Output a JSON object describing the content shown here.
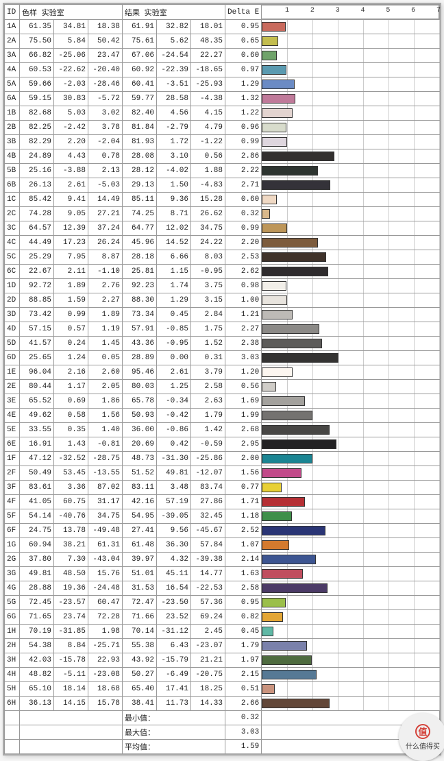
{
  "headers": {
    "id": "ID",
    "group1": "色样 实验室",
    "group2": "结果 实验室",
    "delta": "Delta E"
  },
  "axis": {
    "min": 0,
    "max": 7,
    "ticks": [
      1,
      2,
      3,
      4,
      5,
      6,
      7
    ]
  },
  "grid_color": "#cccccc",
  "rows": [
    {
      "id": "1A",
      "a1": 61.35,
      "a2": 34.81,
      "a3": 18.38,
      "b1": 61.91,
      "b2": 32.82,
      "b3": 18.01,
      "dE": 0.95,
      "color": "#c96a5d"
    },
    {
      "id": "2A",
      "a1": 75.5,
      "a2": 5.84,
      "a3": 50.42,
      "b1": 75.61,
      "b2": 5.62,
      "b3": 48.35,
      "dE": 0.65,
      "color": "#c3bd4e"
    },
    {
      "id": "3A",
      "a1": 66.82,
      "a2": -25.06,
      "a3": 23.47,
      "b1": 67.06,
      "b2": -24.54,
      "b3": 22.27,
      "dE": 0.6,
      "color": "#6fa36a"
    },
    {
      "id": "4A",
      "a1": 60.53,
      "a2": -22.62,
      "a3": -20.4,
      "b1": 60.92,
      "b2": -22.39,
      "b3": -18.65,
      "dE": 0.97,
      "color": "#5a9ab0"
    },
    {
      "id": "5A",
      "a1": 59.66,
      "a2": -2.03,
      "a3": -28.46,
      "b1": 60.41,
      "b2": -3.51,
      "b3": -25.93,
      "dE": 1.29,
      "color": "#6b8bc4"
    },
    {
      "id": "6A",
      "a1": 59.15,
      "a2": 30.83,
      "a3": -5.72,
      "b1": 59.77,
      "b2": 28.58,
      "b3": -4.38,
      "dE": 1.32,
      "color": "#c07a9a"
    },
    {
      "id": "1B",
      "a1": 82.68,
      "a2": 5.03,
      "a3": 3.02,
      "b1": 82.4,
      "b2": 4.56,
      "b3": 4.15,
      "dE": 1.22,
      "color": "#e3d4d0"
    },
    {
      "id": "2B",
      "a1": 82.25,
      "a2": -2.42,
      "a3": 3.78,
      "b1": 81.84,
      "b2": -2.79,
      "b3": 4.79,
      "dE": 0.96,
      "color": "#d8dccc"
    },
    {
      "id": "3B",
      "a1": 82.29,
      "a2": 2.2,
      "a3": -2.04,
      "b1": 81.93,
      "b2": 1.72,
      "b3": -1.22,
      "dE": 0.99,
      "color": "#ded6de"
    },
    {
      "id": "4B",
      "a1": 24.89,
      "a2": 4.43,
      "a3": 0.78,
      "b1": 28.08,
      "b2": 3.1,
      "b3": 0.56,
      "dE": 2.86,
      "color": "#33302f"
    },
    {
      "id": "5B",
      "a1": 25.16,
      "a2": -3.88,
      "a3": 2.13,
      "b1": 28.12,
      "b2": -4.02,
      "b3": 1.88,
      "dE": 2.22,
      "color": "#2d3430"
    },
    {
      "id": "6B",
      "a1": 26.13,
      "a2": 2.61,
      "a3": -5.03,
      "b1": 29.13,
      "b2": 1.5,
      "b3": -4.83,
      "dE": 2.71,
      "color": "#343239"
    },
    {
      "id": "1C",
      "a1": 85.42,
      "a2": 9.41,
      "a3": 14.49,
      "b1": 85.11,
      "b2": 9.36,
      "b3": 15.28,
      "dE": 0.6,
      "color": "#f0d9c4"
    },
    {
      "id": "2C",
      "a1": 74.28,
      "a2": 9.05,
      "a3": 27.21,
      "b1": 74.25,
      "b2": 8.71,
      "b3": 26.62,
      "dE": 0.32,
      "color": "#d8b88b"
    },
    {
      "id": "3C",
      "a1": 64.57,
      "a2": 12.39,
      "a3": 37.24,
      "b1": 64.77,
      "b2": 12.02,
      "b3": 34.75,
      "dE": 0.99,
      "color": "#bd9659"
    },
    {
      "id": "4C",
      "a1": 44.49,
      "a2": 17.23,
      "a3": 26.24,
      "b1": 45.96,
      "b2": 14.52,
      "b3": 24.22,
      "dE": 2.2,
      "color": "#7d5c3d"
    },
    {
      "id": "5C",
      "a1": 25.29,
      "a2": 7.95,
      "a3": 8.87,
      "b1": 28.18,
      "b2": 6.66,
      "b3": 8.03,
      "dE": 2.53,
      "color": "#3f322a"
    },
    {
      "id": "6C",
      "a1": 22.67,
      "a2": 2.11,
      "a3": -1.1,
      "b1": 25.81,
      "b2": 1.15,
      "b3": -0.95,
      "dE": 2.62,
      "color": "#2f2c2e"
    },
    {
      "id": "1D",
      "a1": 92.72,
      "a2": 1.89,
      "a3": 2.76,
      "b1": 92.23,
      "b2": 1.74,
      "b3": 3.75,
      "dE": 0.98,
      "color": "#f2efe9"
    },
    {
      "id": "2D",
      "a1": 88.85,
      "a2": 1.59,
      "a3": 2.27,
      "b1": 88.3,
      "b2": 1.29,
      "b3": 3.15,
      "dE": 1.0,
      "color": "#e8e4de"
    },
    {
      "id": "3D",
      "a1": 73.42,
      "a2": 0.99,
      "a3": 1.89,
      "b1": 73.34,
      "b2": 0.45,
      "b3": 2.84,
      "dE": 1.21,
      "color": "#bdbab6"
    },
    {
      "id": "4D",
      "a1": 57.15,
      "a2": 0.57,
      "a3": 1.19,
      "b1": 57.91,
      "b2": -0.85,
      "b3": 1.75,
      "dE": 2.27,
      "color": "#8b8986"
    },
    {
      "id": "5D",
      "a1": 41.57,
      "a2": 0.24,
      "a3": 1.45,
      "b1": 43.36,
      "b2": -0.95,
      "b3": 1.52,
      "dE": 2.38,
      "color": "#5d5c5a"
    },
    {
      "id": "6D",
      "a1": 25.65,
      "a2": 1.24,
      "a3": 0.05,
      "b1": 28.89,
      "b2": -0.0,
      "b3": 0.31,
      "dE": 3.03,
      "color": "#343332"
    },
    {
      "id": "1E",
      "a1": 96.04,
      "a2": 2.16,
      "a3": 2.6,
      "b1": 95.46,
      "b2": 2.61,
      "b3": 3.79,
      "dE": 1.2,
      "color": "#fcf6f0"
    },
    {
      "id": "2E",
      "a1": 80.44,
      "a2": 1.17,
      "a3": 2.05,
      "b1": 80.03,
      "b2": 1.25,
      "b3": 2.58,
      "dE": 0.56,
      "color": "#d0cdc8"
    },
    {
      "id": "3E",
      "a1": 65.52,
      "a2": 0.69,
      "a3": 1.86,
      "b1": 65.78,
      "b2": -0.34,
      "b3": 2.63,
      "dE": 1.69,
      "color": "#a3a19d"
    },
    {
      "id": "4E",
      "a1": 49.62,
      "a2": 0.58,
      "a3": 1.56,
      "b1": 50.93,
      "b2": -0.42,
      "b3": 1.79,
      "dE": 1.99,
      "color": "#747270"
    },
    {
      "id": "5E",
      "a1": 33.55,
      "a2": 0.35,
      "a3": 1.4,
      "b1": 36.0,
      "b2": -0.86,
      "b3": 1.42,
      "dE": 2.68,
      "color": "#474644"
    },
    {
      "id": "6E",
      "a1": 16.91,
      "a2": 1.43,
      "a3": -0.81,
      "b1": 20.69,
      "b2": 0.42,
      "b3": -0.59,
      "dE": 2.95,
      "color": "#232224"
    },
    {
      "id": "1F",
      "a1": 47.12,
      "a2": -32.52,
      "a3": -28.75,
      "b1": 48.73,
      "b2": -31.3,
      "b3": -25.86,
      "dE": 2.0,
      "color": "#1b8593"
    },
    {
      "id": "2F",
      "a1": 50.49,
      "a2": 53.45,
      "a3": -13.55,
      "b1": 51.52,
      "b2": 49.81,
      "b3": -12.07,
      "dE": 1.56,
      "color": "#c24a8a"
    },
    {
      "id": "3F",
      "a1": 83.61,
      "a2": 3.36,
      "a3": 87.02,
      "b1": 83.11,
      "b2": 3.48,
      "b3": 83.74,
      "dE": 0.77,
      "color": "#e8d035"
    },
    {
      "id": "4F",
      "a1": 41.05,
      "a2": 60.75,
      "a3": 31.17,
      "b1": 42.16,
      "b2": 57.19,
      "b3": 27.86,
      "dE": 1.71,
      "color": "#b52f34"
    },
    {
      "id": "5F",
      "a1": 54.14,
      "a2": -40.76,
      "a3": 34.75,
      "b1": 54.95,
      "b2": -39.05,
      "b3": 32.45,
      "dE": 1.18,
      "color": "#3f8f4a"
    },
    {
      "id": "6F",
      "a1": 24.75,
      "a2": 13.78,
      "a3": -49.48,
      "b1": 27.41,
      "b2": 9.56,
      "b3": -45.67,
      "dE": 2.52,
      "color": "#2a3575"
    },
    {
      "id": "1G",
      "a1": 60.94,
      "a2": 38.21,
      "a3": 61.31,
      "b1": 61.48,
      "b2": 36.3,
      "b3": 57.84,
      "dE": 1.07,
      "color": "#d47a2e"
    },
    {
      "id": "2G",
      "a1": 37.8,
      "a2": 7.3,
      "a3": -43.04,
      "b1": 39.97,
      "b2": 4.32,
      "b3": -39.38,
      "dE": 2.14,
      "color": "#3d5591"
    },
    {
      "id": "3G",
      "a1": 49.81,
      "a2": 48.5,
      "a3": 15.76,
      "b1": 51.01,
      "b2": 45.11,
      "b3": 14.77,
      "dE": 1.63,
      "color": "#c04e5e"
    },
    {
      "id": "4G",
      "a1": 28.88,
      "a2": 19.36,
      "a3": -24.48,
      "b1": 31.53,
      "b2": 16.54,
      "b3": -22.53,
      "dE": 2.58,
      "color": "#4b3a66"
    },
    {
      "id": "5G",
      "a1": 72.45,
      "a2": -23.57,
      "a3": 60.47,
      "b1": 72.47,
      "b2": -23.5,
      "b3": 57.36,
      "dE": 0.95,
      "color": "#9bbf4a"
    },
    {
      "id": "6G",
      "a1": 71.65,
      "a2": 23.74,
      "a3": 72.28,
      "b1": 71.66,
      "b2": 23.52,
      "b3": 69.24,
      "dE": 0.82,
      "color": "#e3a636"
    },
    {
      "id": "1H",
      "a1": 70.19,
      "a2": -31.85,
      "a3": 1.98,
      "b1": 70.14,
      "b2": -31.12,
      "b3": 2.45,
      "dE": 0.45,
      "color": "#5fb8a5"
    },
    {
      "id": "2H",
      "a1": 54.38,
      "a2": 8.84,
      "a3": -25.71,
      "b1": 55.38,
      "b2": 6.43,
      "b3": -23.07,
      "dE": 1.79,
      "color": "#7a81ab"
    },
    {
      "id": "3H",
      "a1": 42.03,
      "a2": -15.78,
      "a3": 22.93,
      "b1": 43.92,
      "b2": -15.79,
      "b3": 21.21,
      "dE": 1.97,
      "color": "#4e6b3f"
    },
    {
      "id": "4H",
      "a1": 48.82,
      "a2": -5.11,
      "a3": -23.08,
      "b1": 50.27,
      "b2": -6.49,
      "b3": -20.75,
      "dE": 2.15,
      "color": "#567995"
    },
    {
      "id": "5H",
      "a1": 65.1,
      "a2": 18.14,
      "a3": 18.68,
      "b1": 65.4,
      "b2": 17.41,
      "b3": 18.25,
      "dE": 0.51,
      "color": "#c9937e"
    },
    {
      "id": "6H",
      "a1": 36.13,
      "a2": 14.15,
      "a3": 15.78,
      "b1": 38.41,
      "b2": 11.73,
      "b3": 14.33,
      "dE": 2.66,
      "color": "#634738"
    }
  ],
  "summary": [
    {
      "label": "最小值：",
      "value": 0.32
    },
    {
      "label": "最大值：",
      "value": 3.03
    },
    {
      "label": "平均值：",
      "value": 1.59
    }
  ],
  "watermark": {
    "icon": "值",
    "text": "什么值得买"
  }
}
